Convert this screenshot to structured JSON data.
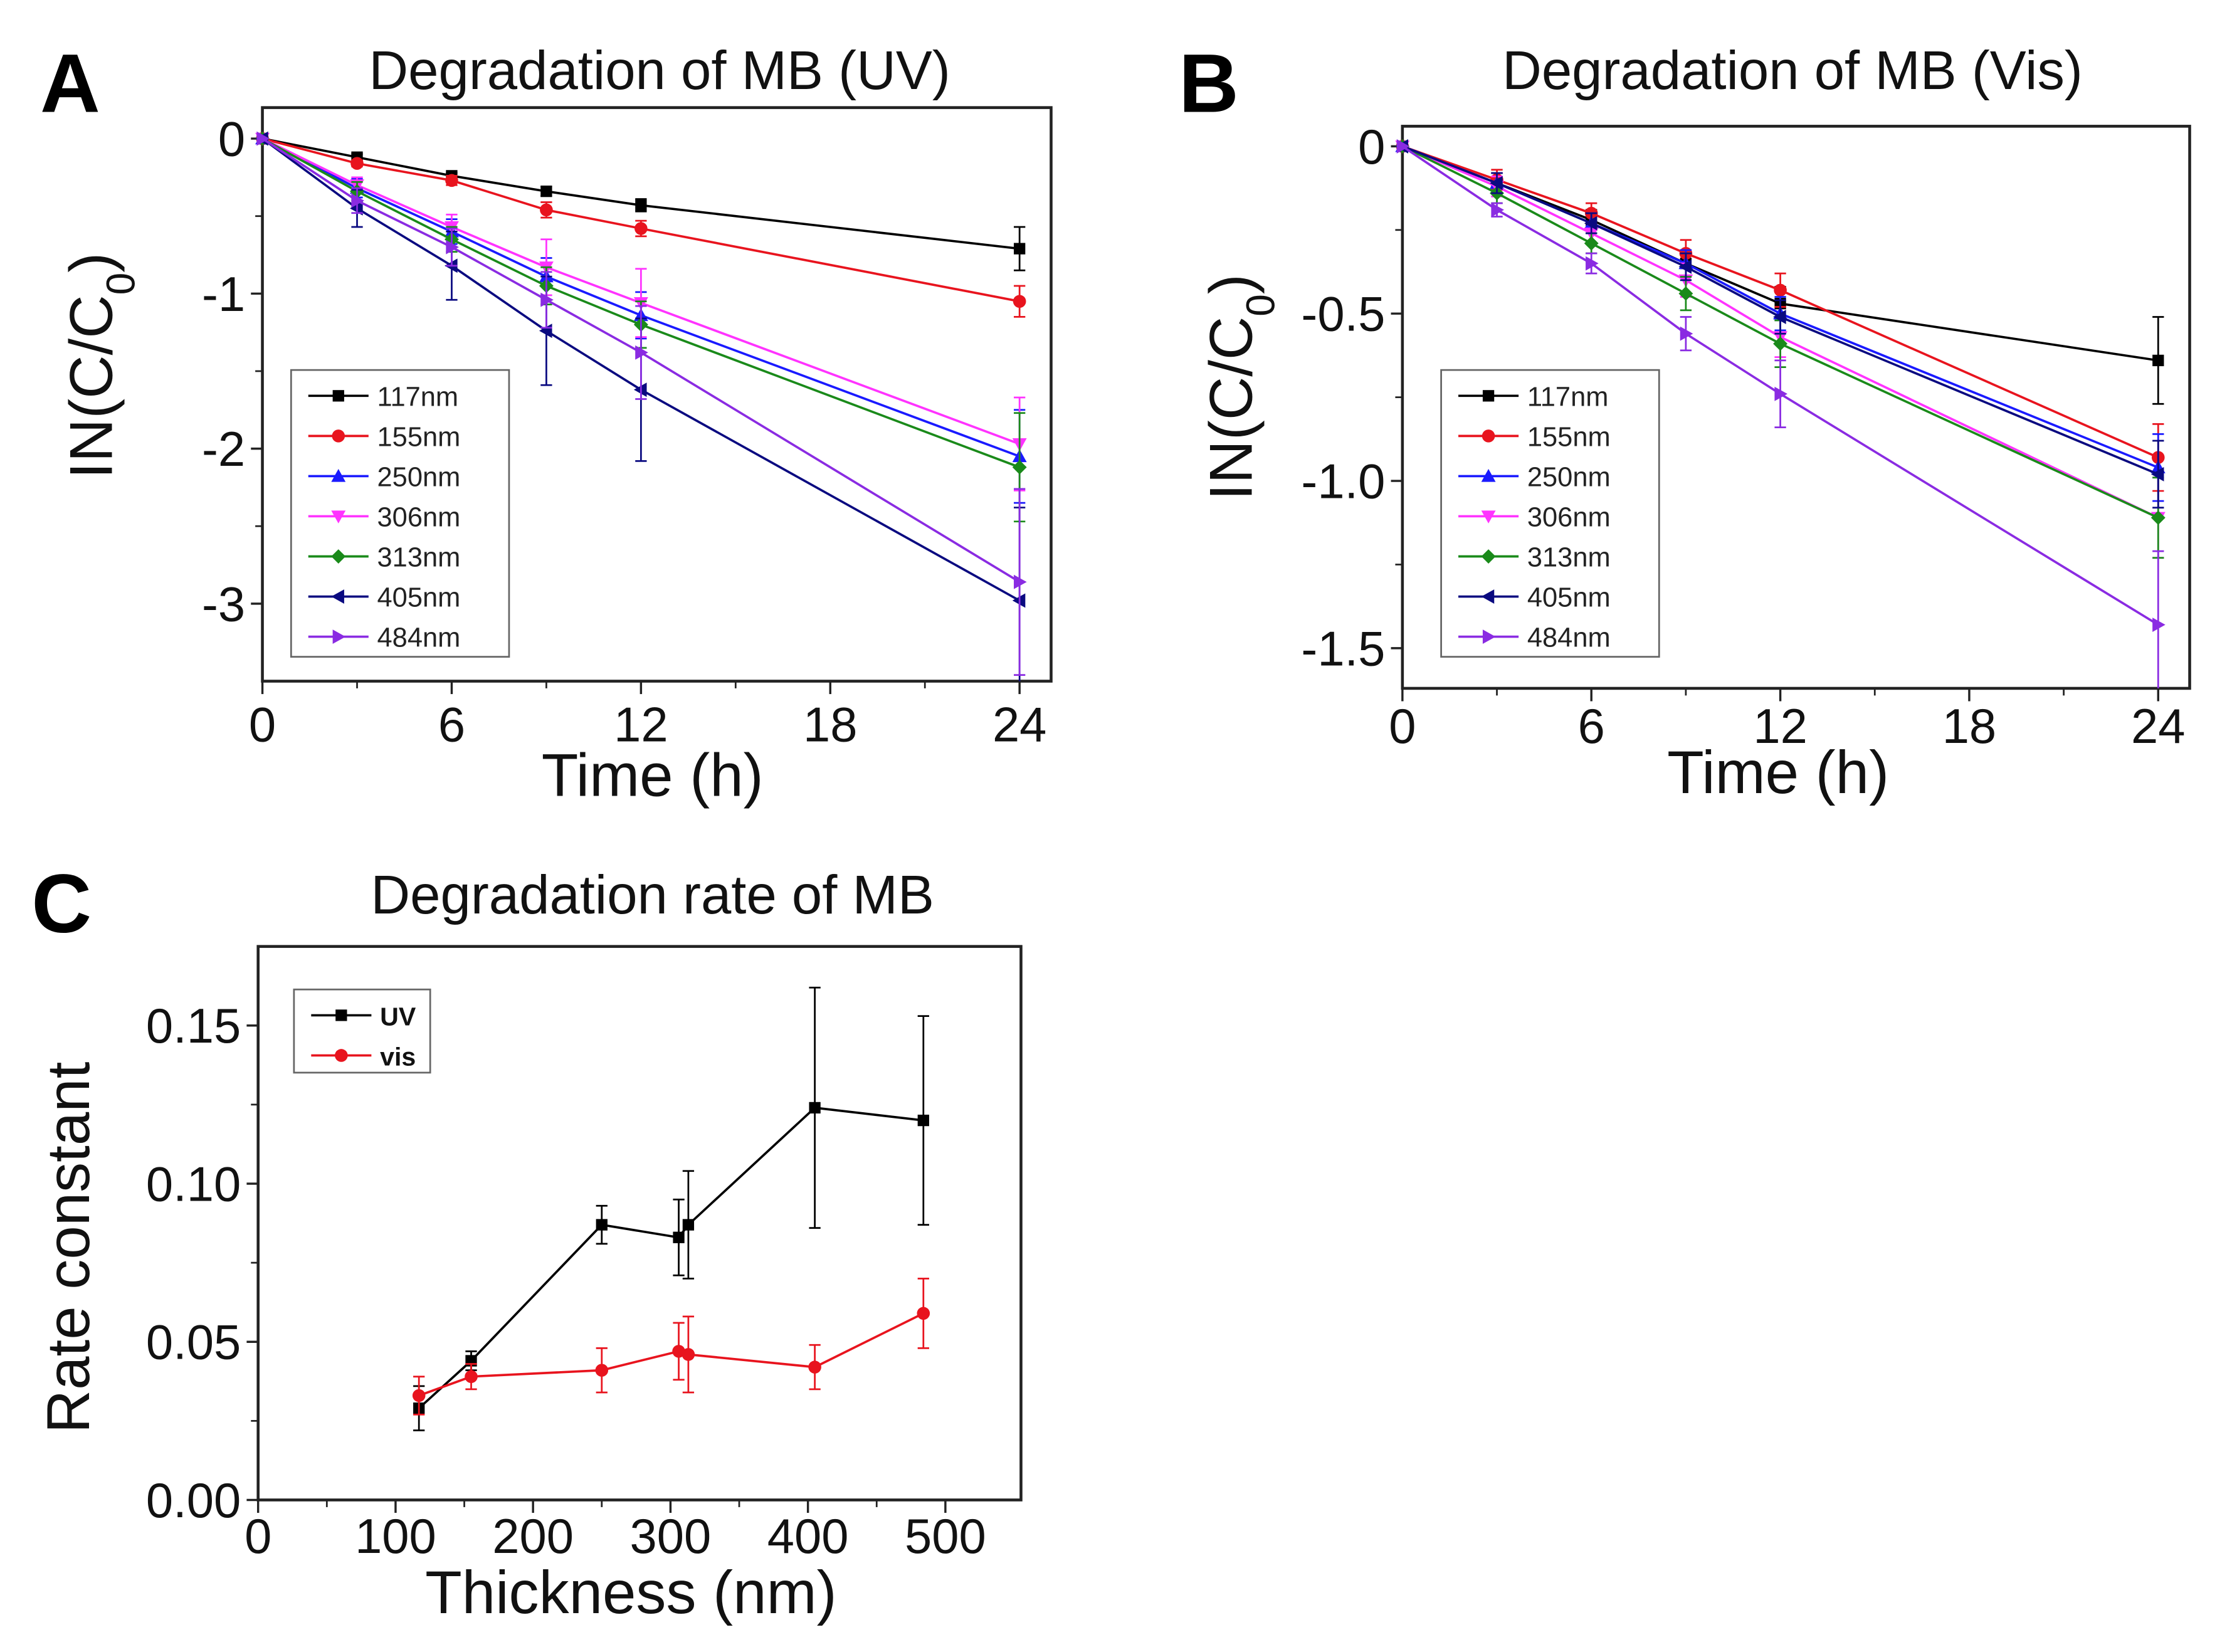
{
  "chart_data": [
    {
      "panel": "A",
      "type": "line",
      "title": "Degradation of MB (UV)",
      "xlabel": "Time (h)",
      "ylabel_parts": [
        "IN(C/C",
        "0",
        ")"
      ],
      "xlim": [
        0,
        25
      ],
      "ylim": [
        -3.5,
        0.2
      ],
      "xticks": [
        0,
        6,
        12,
        18,
        24
      ],
      "xtick_labels": [
        "0",
        "6",
        "12",
        "18",
        "24"
      ],
      "yticks": [
        0,
        -1,
        -2,
        -3
      ],
      "ytick_labels": [
        "0",
        "-1",
        "-2",
        "-3"
      ],
      "legend_position": "bottom-left",
      "x": [
        0,
        3,
        6,
        9,
        12,
        24
      ],
      "series": [
        {
          "name": "117nm",
          "color": "#000000",
          "marker": "square",
          "values": [
            0,
            -0.12,
            -0.24,
            -0.34,
            -0.43,
            -0.71
          ],
          "errors": [
            0,
            0.02,
            0.02,
            0.03,
            0.04,
            0.14
          ]
        },
        {
          "name": "155nm",
          "color": "#e8141e",
          "marker": "circle",
          "values": [
            0,
            -0.16,
            -0.27,
            -0.46,
            -0.58,
            -1.05
          ],
          "errors": [
            0,
            0.02,
            0.03,
            0.05,
            0.05,
            0.1
          ]
        },
        {
          "name": "250nm",
          "color": "#1a1aff",
          "marker": "triangle-up",
          "values": [
            0,
            -0.32,
            -0.6,
            -0.89,
            -1.14,
            -2.05
          ],
          "errors": [
            0,
            0.06,
            0.08,
            0.12,
            0.15,
            0.3
          ]
        },
        {
          "name": "306nm",
          "color": "#ff33ff",
          "marker": "triangle-down",
          "values": [
            0,
            -0.3,
            -0.57,
            -0.83,
            -1.06,
            -1.97
          ],
          "errors": [
            0,
            0.05,
            0.08,
            0.18,
            0.22,
            0.3
          ]
        },
        {
          "name": "313nm",
          "color": "#1a8a1a",
          "marker": "diamond",
          "values": [
            0,
            -0.34,
            -0.65,
            -0.95,
            -1.2,
            -2.12
          ],
          "errors": [
            0,
            0.06,
            0.08,
            0.12,
            0.15,
            0.35
          ]
        },
        {
          "name": "405nm",
          "color": "#0a0a80",
          "marker": "triangle-left",
          "values": [
            0,
            -0.45,
            -0.82,
            -1.24,
            -1.62,
            -2.98
          ],
          "errors": [
            0,
            0.12,
            0.22,
            0.35,
            0.46,
            0.6
          ]
        },
        {
          "name": "484nm",
          "color": "#8a2be2",
          "marker": "triangle-right",
          "values": [
            0,
            -0.4,
            -0.7,
            -1.04,
            -1.38,
            -2.86
          ],
          "errors": [
            0,
            0.08,
            0.12,
            0.18,
            0.3,
            0.6
          ]
        }
      ]
    },
    {
      "panel": "B",
      "type": "line",
      "title": "Degradation of MB (Vis)",
      "xlabel": "Time (h)",
      "ylabel_parts": [
        "IN(C/C",
        "0",
        ")"
      ],
      "xlim": [
        0,
        25
      ],
      "ylim": [
        -1.62,
        0.06
      ],
      "xticks": [
        0,
        6,
        12,
        18,
        24
      ],
      "xtick_labels": [
        "0",
        "6",
        "12",
        "18",
        "24"
      ],
      "yticks": [
        0,
        -0.5,
        -1.0,
        -1.5
      ],
      "ytick_labels": [
        "0",
        "-0.5",
        "-1.0",
        "-1.5"
      ],
      "legend_position": "bottom-left",
      "x": [
        0,
        3,
        6,
        9,
        12,
        24
      ],
      "series": [
        {
          "name": "117nm",
          "color": "#000000",
          "marker": "square",
          "values": [
            0,
            -0.11,
            -0.22,
            -0.35,
            -0.47,
            -0.64
          ],
          "errors": [
            0,
            0.03,
            0.03,
            0.04,
            0.05,
            0.13
          ]
        },
        {
          "name": "155nm",
          "color": "#e8141e",
          "marker": "circle",
          "values": [
            0,
            -0.1,
            -0.2,
            -0.32,
            -0.43,
            -0.93
          ],
          "errors": [
            0,
            0.03,
            0.03,
            0.04,
            0.05,
            0.1
          ]
        },
        {
          "name": "250nm",
          "color": "#1a1aff",
          "marker": "triangle-up",
          "values": [
            0,
            -0.11,
            -0.23,
            -0.35,
            -0.5,
            -0.96
          ],
          "errors": [
            0,
            0.03,
            0.03,
            0.04,
            0.05,
            0.1
          ]
        },
        {
          "name": "306nm",
          "color": "#ff33ff",
          "marker": "triangle-down",
          "values": [
            0,
            -0.12,
            -0.26,
            -0.4,
            -0.57,
            -1.11
          ],
          "errors": [
            0,
            0.03,
            0.03,
            0.05,
            0.06,
            0.12
          ]
        },
        {
          "name": "313nm",
          "color": "#1a8a1a",
          "marker": "diamond",
          "values": [
            0,
            -0.14,
            -0.29,
            -0.44,
            -0.59,
            -1.11
          ],
          "errors": [
            0,
            0.03,
            0.03,
            0.05,
            0.07,
            0.12
          ]
        },
        {
          "name": "405nm",
          "color": "#0a0a80",
          "marker": "triangle-left",
          "values": [
            0,
            -0.11,
            -0.23,
            -0.36,
            -0.51,
            -0.98
          ],
          "errors": [
            0,
            0.03,
            0.03,
            0.04,
            0.05,
            0.1
          ]
        },
        {
          "name": "484nm",
          "color": "#8a2be2",
          "marker": "triangle-right",
          "values": [
            0,
            -0.19,
            -0.35,
            -0.56,
            -0.74,
            -1.43
          ],
          "errors": [
            0,
            0.02,
            0.03,
            0.05,
            0.1,
            0.22
          ]
        }
      ]
    },
    {
      "panel": "C",
      "type": "line",
      "title": "Degradation rate of MB",
      "xlabel": "Thickness (nm)",
      "ylabel_parts": [
        "Rate constant"
      ],
      "xlim": [
        0,
        555
      ],
      "ylim": [
        0,
        0.175
      ],
      "xticks": [
        0,
        100,
        200,
        300,
        400,
        500
      ],
      "xtick_labels": [
        "0",
        "100",
        "200",
        "300",
        "400",
        "500"
      ],
      "yticks": [
        0,
        0.05,
        0.1,
        0.15
      ],
      "ytick_labels": [
        "0.00",
        "0.05",
        "0.10",
        "0.15"
      ],
      "legend_position": "top-left",
      "x": [
        117,
        155,
        250,
        306,
        313,
        405,
        484
      ],
      "series": [
        {
          "name": "UV",
          "color": "#000000",
          "marker": "square",
          "values": [
            0.029,
            0.044,
            0.087,
            0.083,
            0.087,
            0.124,
            0.12
          ],
          "errors": [
            0.007,
            0.003,
            0.006,
            0.012,
            0.017,
            0.038,
            0.033
          ]
        },
        {
          "name": "vis",
          "color": "#e8141e",
          "marker": "circle",
          "values": [
            0.033,
            0.039,
            0.041,
            0.047,
            0.046,
            0.042,
            0.059
          ],
          "errors": [
            0.006,
            0.004,
            0.007,
            0.009,
            0.012,
            0.007,
            0.011
          ]
        }
      ]
    }
  ]
}
